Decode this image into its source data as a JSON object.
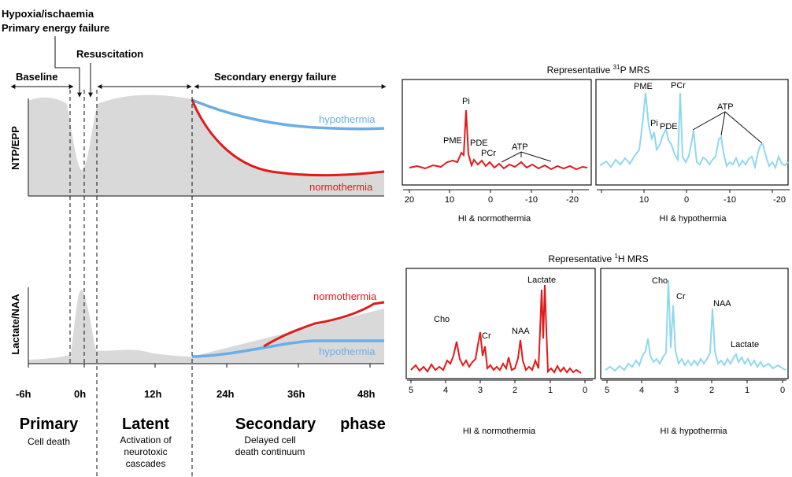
{
  "timeline": {
    "top_labels": {
      "hypoxia": "Hypoxia/ischaemia",
      "primary_failure": "Primary energy failure",
      "resuscitation": "Resuscitation",
      "baseline": "Baseline",
      "secondary_failure": "Secondary energy failure"
    },
    "axes": {
      "upper_ylabel": "NTP/EPP",
      "lower_ylabel": "Lactate/NAA"
    },
    "series_labels": {
      "upper_hypo": "hypothermia",
      "upper_normo": "normothermia",
      "lower_normo": "normothermia",
      "lower_hypo": "hypothermia"
    },
    "x_ticks": [
      "-6h",
      "0h",
      "12h",
      "24h",
      "36h",
      "48h"
    ],
    "phases": {
      "primary": {
        "title": "Primary",
        "desc": "Cell death"
      },
      "latent": {
        "title": "Latent",
        "desc": [
          "Activation of",
          "neurotoxic",
          "cascades"
        ]
      },
      "secondary": {
        "title": "Secondary",
        "title2": "phase",
        "desc": [
          "Delayed cell",
          "death continuum"
        ]
      }
    }
  },
  "mrs31p": {
    "title_pre": "Representative ",
    "title_sup": "31",
    "title_post": "P MRS",
    "normo": {
      "peaks": {
        "pme": "PME",
        "pi": "Pi",
        "pde": "PDE",
        "pcr": "PCr",
        "atp": "ATP"
      },
      "ticks": [
        "20",
        "10",
        "0",
        "-10",
        "-20"
      ],
      "caption": "HI & normothermia"
    },
    "hypo": {
      "peaks": {
        "pme": "PME",
        "pi": "Pi",
        "pde": "PDE",
        "pcr": "PCr",
        "atp": "ATP"
      },
      "ticks": [
        "10",
        "0",
        "-10",
        "-20"
      ],
      "caption": "HI & hypothermia"
    }
  },
  "mrs1h": {
    "title_pre": "Representative ",
    "title_sup": "1",
    "title_post": "H MRS",
    "normo": {
      "peaks": {
        "cho": "Cho",
        "cr": "Cr",
        "naa": "NAA",
        "lactate": "Lactate"
      },
      "ticks": [
        "5",
        "4",
        "3",
        "2",
        "1",
        "0"
      ],
      "caption": "HI & normothermia"
    },
    "hypo": {
      "peaks": {
        "cho": "Cho",
        "cr": "Cr",
        "naa": "NAA",
        "lactate": "Lactate"
      },
      "ticks": [
        "5",
        "4",
        "3",
        "2",
        "1",
        "0"
      ],
      "caption": "HI & hypothermia"
    }
  },
  "colors": {
    "normothermia": "#e01b1b",
    "hypothermia": "#6aaee8",
    "spectrum_hypo": "#8fd8ee",
    "area": "#d9d9d9"
  }
}
